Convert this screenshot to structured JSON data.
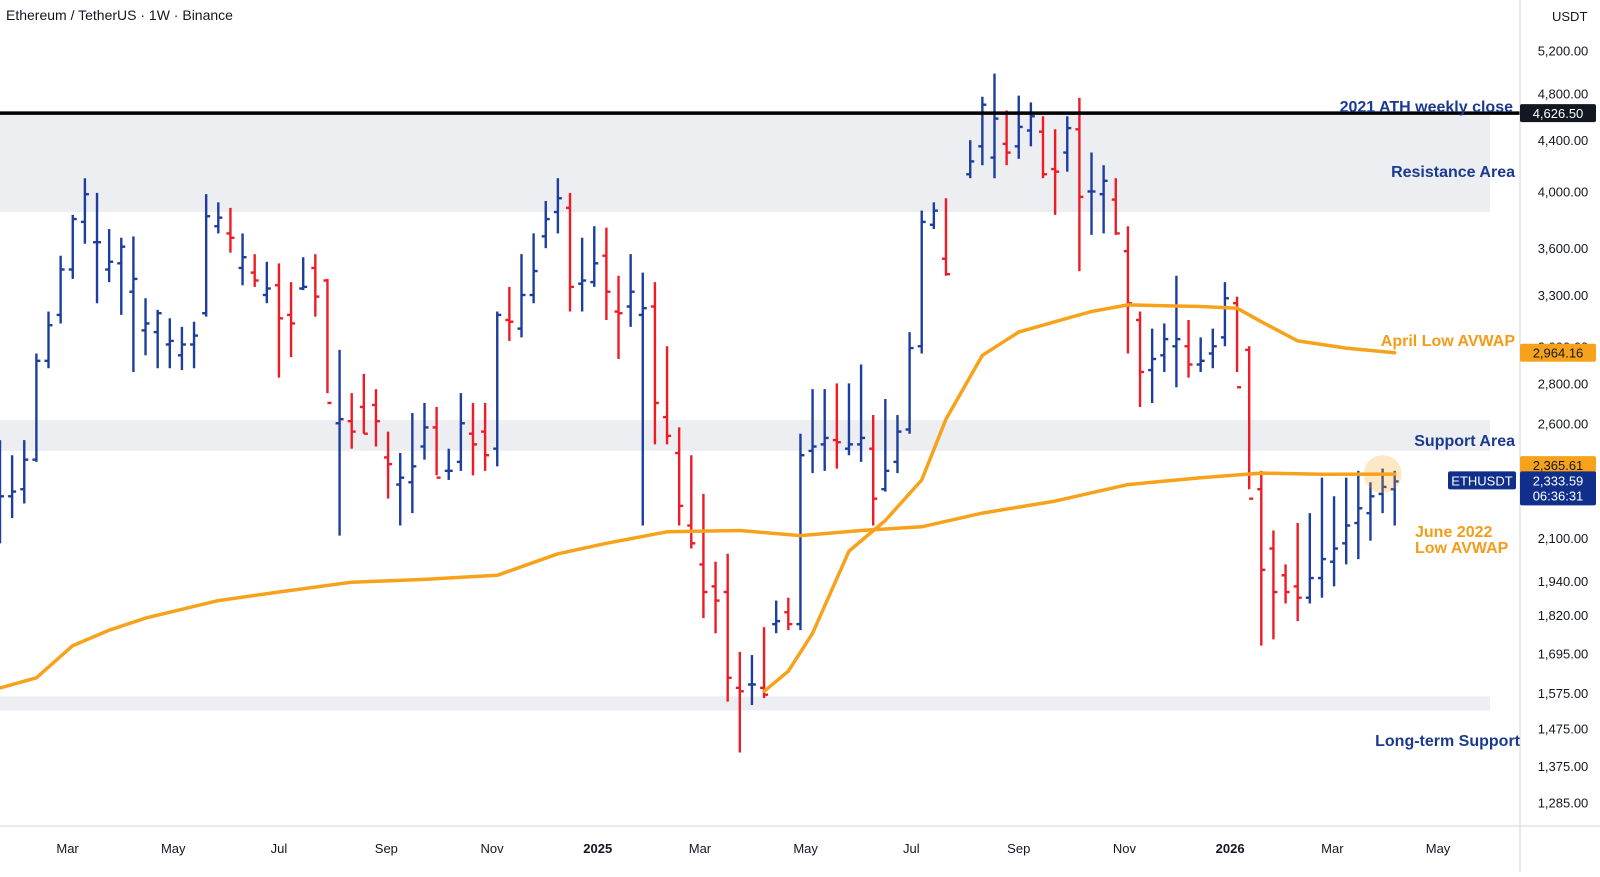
{
  "header": {
    "symbol_title": "Ethereum / TetherUS · 1W · Binance"
  },
  "price_axis": {
    "unit_label": "USDT",
    "ticks": [
      "5,200.00",
      "4,800.00",
      "4,400.00",
      "4,000.00",
      "3,600.00",
      "3,300.00",
      "3,000.00",
      "2,800.00",
      "2,600.00",
      "2,100.00",
      "1,940.00",
      "1,820.00",
      "1,695.00",
      "1,575.00",
      "1,475.00",
      "1,375.00",
      "1,285.00"
    ]
  },
  "time_axis": {
    "ticks": [
      {
        "label": "Mar",
        "date": "2024-03-01",
        "bold": false
      },
      {
        "label": "May",
        "date": "2024-05-01",
        "bold": false
      },
      {
        "label": "Jul",
        "date": "2024-07-01",
        "bold": false
      },
      {
        "label": "Sep",
        "date": "2024-09-01",
        "bold": false
      },
      {
        "label": "Nov",
        "date": "2024-11-01",
        "bold": false
      },
      {
        "label": "2025",
        "date": "2025-01-01",
        "bold": true
      },
      {
        "label": "Mar",
        "date": "2025-03-01",
        "bold": false
      },
      {
        "label": "May",
        "date": "2025-05-01",
        "bold": false
      },
      {
        "label": "Jul",
        "date": "2025-07-01",
        "bold": false
      },
      {
        "label": "Sep",
        "date": "2025-09-01",
        "bold": false
      },
      {
        "label": "Nov",
        "date": "2025-11-01",
        "bold": false
      },
      {
        "label": "2026",
        "date": "2026-01-01",
        "bold": true
      },
      {
        "label": "Mar",
        "date": "2026-03-01",
        "bold": false
      },
      {
        "label": "May",
        "date": "2026-05-01",
        "bold": false
      }
    ]
  },
  "price_labels": {
    "ath": {
      "text": "4,626.50",
      "value": 4626.5,
      "bg": "#131722",
      "fg": "#ffffff"
    },
    "april_avwap": {
      "text": "2,964.16",
      "value": 2964.16,
      "bg": "#f7a21b",
      "fg": "#131722"
    },
    "june_avwap": {
      "text": "2,365.61",
      "value": 2365.61,
      "bg": "#f7a21b",
      "fg": "#131722"
    },
    "last": {
      "symbol": "ETHUSDT",
      "price": "2,333.59",
      "countdown": "06:36:31",
      "value": 2333.59,
      "bg": "#0f2f8a",
      "fg": "#ffffff"
    }
  },
  "annotations": {
    "ath_weekly_close": "2021 ATH weekly close",
    "resistance_area": "Resistance Area",
    "april_low_avwap": "April Low AVWAP",
    "support_area": "Support Area",
    "june_avwap_line1": "June 2022",
    "june_avwap_line2": "Low AVWAP",
    "long_term_support": "Long-term Support"
  },
  "colors": {
    "up": "#1d3e9e",
    "down": "#ee1c25",
    "avwap": "#f7a21b",
    "zone": "#eceef1",
    "annotation_blue": "#1b3a8f",
    "annotation_orange": "#f59b1a",
    "ath_line": "#000000"
  },
  "chart_data": {
    "type": "ohlc",
    "title": "Ethereum / TetherUS · 1W · Binance",
    "price_scale": "log",
    "ylim": [
      1230,
      5400
    ],
    "xlim": [
      "2024-01-22",
      "2026-05-31"
    ],
    "zones": [
      {
        "name": "Resistance Area",
        "low": 3850,
        "high": 4626.5
      },
      {
        "name": "Support Area",
        "low": 2470,
        "high": 2615
      },
      {
        "name": "Long-term Support",
        "low": 1525,
        "high": 1565
      }
    ],
    "levels": [
      {
        "name": "2021 ATH weekly close",
        "value": 4626.5
      }
    ],
    "bars": [
      [
        "2024-01-22",
        2520,
        2080,
        2180,
        2270
      ],
      [
        "2024-01-29",
        2450,
        2180,
        2270,
        2290
      ],
      [
        "2024-02-05",
        2520,
        2240,
        2300,
        2430
      ],
      [
        "2024-02-12",
        2960,
        2420,
        2430,
        2920
      ],
      [
        "2024-02-19",
        3200,
        2880,
        2920,
        3120
      ],
      [
        "2024-02-26",
        3550,
        3130,
        3180,
        3460
      ],
      [
        "2024-03-04",
        3830,
        3400,
        3460,
        3800
      ],
      [
        "2024-03-11",
        4100,
        3630,
        3780,
        3980
      ],
      [
        "2024-03-18",
        3990,
        3250,
        3640,
        3640
      ],
      [
        "2024-03-25",
        3730,
        3380,
        3460,
        3510
      ],
      [
        "2024-04-01",
        3670,
        3180,
        3500,
        3610
      ],
      [
        "2024-04-08",
        3680,
        2860,
        3320,
        3400
      ],
      [
        "2024-04-15",
        3280,
        2950,
        3090,
        3130
      ],
      [
        "2024-04-22",
        3210,
        2880,
        3080,
        3190
      ],
      [
        "2024-04-29",
        3160,
        2880,
        3010,
        3030
      ],
      [
        "2024-05-06",
        3110,
        2870,
        2950,
        3010
      ],
      [
        "2024-05-13",
        3140,
        2880,
        3010,
        3060
      ],
      [
        "2024-05-20",
        3980,
        3170,
        3190,
        3820
      ],
      [
        "2024-05-27",
        3920,
        3700,
        3750,
        3810
      ],
      [
        "2024-06-03",
        3880,
        3570,
        3700,
        3670
      ],
      [
        "2024-06-10",
        3700,
        3360,
        3470,
        3540
      ],
      [
        "2024-06-17",
        3560,
        3350,
        3440,
        3390
      ],
      [
        "2024-06-24",
        3510,
        3250,
        3300,
        3340
      ],
      [
        "2024-07-01",
        3500,
        2830,
        3360,
        3160
      ],
      [
        "2024-07-08",
        3380,
        2940,
        3180,
        3130
      ],
      [
        "2024-07-15",
        3540,
        3330,
        3340,
        3350
      ],
      [
        "2024-07-22",
        3560,
        3170,
        3470,
        3290
      ],
      [
        "2024-07-29",
        3400,
        2750,
        3390,
        2700
      ],
      [
        "2024-08-05",
        2980,
        2110,
        2600,
        2620
      ],
      [
        "2024-08-12",
        2750,
        2480,
        2610,
        2560
      ],
      [
        "2024-08-19",
        2850,
        2550,
        2680,
        2550
      ],
      [
        "2024-08-26",
        2770,
        2490,
        2690,
        2610
      ],
      [
        "2024-09-02",
        2560,
        2260,
        2440,
        2410
      ],
      [
        "2024-09-09",
        2460,
        2150,
        2320,
        2350
      ],
      [
        "2024-09-16",
        2650,
        2200,
        2330,
        2400
      ],
      [
        "2024-09-23",
        2700,
        2430,
        2490,
        2580
      ],
      [
        "2024-09-30",
        2680,
        2360,
        2580,
        2350
      ],
      [
        "2024-10-07",
        2480,
        2340,
        2380,
        2380
      ],
      [
        "2024-10-14",
        2750,
        2380,
        2420,
        2600
      ],
      [
        "2024-10-21",
        2700,
        2360,
        2550,
        2500
      ],
      [
        "2024-10-28",
        2700,
        2380,
        2560,
        2450
      ],
      [
        "2024-11-04",
        3200,
        2400,
        2480,
        3180
      ],
      [
        "2024-11-11",
        3350,
        3030,
        3150,
        3140
      ],
      [
        "2024-11-18",
        3560,
        3050,
        3100,
        3300
      ],
      [
        "2024-11-25",
        3700,
        3250,
        3300,
        3450
      ],
      [
        "2024-12-02",
        3930,
        3600,
        3680,
        3800
      ],
      [
        "2024-12-09",
        4100,
        3700,
        3850,
        3950
      ],
      [
        "2024-12-16",
        3990,
        3200,
        3880,
        3350
      ],
      [
        "2024-12-23",
        3670,
        3200,
        3370,
        3390
      ],
      [
        "2024-12-30",
        3750,
        3350,
        3380,
        3500
      ],
      [
        "2025-01-06",
        3740,
        3150,
        3550,
        3320
      ],
      [
        "2025-01-13",
        3420,
        2930,
        3200,
        3190
      ],
      [
        "2025-01-20",
        3560,
        3110,
        3230,
        3320
      ],
      [
        "2025-01-27",
        3440,
        2150,
        3180,
        3220
      ],
      [
        "2025-02-03",
        3380,
        2500,
        3230,
        2700
      ],
      [
        "2025-02-10",
        3000,
        2500,
        2630,
        2540
      ],
      [
        "2025-02-17",
        2580,
        2150,
        2460,
        2230
      ],
      [
        "2025-02-24",
        2450,
        2060,
        2150,
        2080
      ],
      [
        "2025-03-03",
        2280,
        1810,
        2000,
        1900
      ],
      [
        "2025-03-10",
        2010,
        1760,
        1920,
        1870
      ],
      [
        "2025-03-17",
        2040,
        1550,
        1900,
        1620
      ],
      [
        "2025-03-24",
        1700,
        1410,
        1590,
        1580
      ],
      [
        "2025-03-31",
        1690,
        1540,
        1600,
        1600
      ],
      [
        "2025-04-07",
        1780,
        1560,
        1590,
        1570
      ],
      [
        "2025-04-14",
        1870,
        1760,
        1790,
        1800
      ],
      [
        "2025-04-21",
        1880,
        1770,
        1830,
        1790
      ],
      [
        "2025-04-28",
        2550,
        1770,
        1790,
        2450
      ],
      [
        "2025-05-05",
        2770,
        2370,
        2470,
        2490
      ],
      [
        "2025-05-12",
        2770,
        2380,
        2500,
        2530
      ],
      [
        "2025-05-19",
        2800,
        2390,
        2520,
        2510
      ],
      [
        "2025-05-26",
        2800,
        2450,
        2480,
        2500
      ],
      [
        "2025-06-02",
        2900,
        2420,
        2500,
        2530
      ],
      [
        "2025-06-09",
        2640,
        2150,
        2480,
        2260
      ],
      [
        "2025-06-16",
        2720,
        2290,
        2300,
        2380
      ],
      [
        "2025-06-23",
        2640,
        2370,
        2420,
        2560
      ],
      [
        "2025-06-30",
        3080,
        2550,
        2570,
        2990
      ],
      [
        "2025-07-07",
        3860,
        2960,
        3000,
        3780
      ],
      [
        "2025-07-14",
        3920,
        3730,
        3760,
        3860
      ],
      [
        "2025-07-21",
        3950,
        3420,
        3530,
        3430
      ],
      [
        "2025-08-04",
        4400,
        4100,
        4130,
        4230
      ],
      [
        "2025-08-11",
        4770,
        4200,
        4350,
        4700
      ],
      [
        "2025-08-18",
        4980,
        4100,
        4260,
        4580
      ],
      [
        "2025-08-25",
        4650,
        4200,
        4370,
        4300
      ],
      [
        "2025-09-01",
        4780,
        4250,
        4350,
        4510
      ],
      [
        "2025-09-08",
        4720,
        4350,
        4480,
        4600
      ],
      [
        "2025-09-15",
        4600,
        4100,
        4470,
        4130
      ],
      [
        "2025-09-22",
        4490,
        3830,
        4170,
        4150
      ],
      [
        "2025-09-29",
        4600,
        4150,
        4300,
        4500
      ],
      [
        "2025-10-06",
        4760,
        3450,
        4490,
        3960
      ],
      [
        "2025-10-13",
        4300,
        3690,
        4000,
        4000
      ],
      [
        "2025-10-20",
        4200,
        3700,
        3980,
        4080
      ],
      [
        "2025-10-27",
        4100,
        3690,
        3940,
        3700
      ],
      [
        "2025-11-03",
        3750,
        2960,
        3580,
        3250
      ],
      [
        "2025-11-10",
        3200,
        2680,
        3150,
        2860
      ],
      [
        "2025-11-17",
        3100,
        2700,
        2870,
        2930
      ],
      [
        "2025-11-24",
        3130,
        2860,
        2950,
        3040
      ],
      [
        "2025-12-01",
        3420,
        2780,
        3000,
        3040
      ],
      [
        "2025-12-08",
        3150,
        2830,
        3000,
        2900
      ],
      [
        "2025-12-15",
        3050,
        2860,
        2900,
        2920
      ],
      [
        "2025-12-22",
        3100,
        2880,
        2960,
        3000
      ],
      [
        "2025-12-29",
        3380,
        3000,
        3050,
        3280
      ],
      [
        "2026-01-05",
        3290,
        2860,
        3250,
        2780
      ],
      [
        "2026-01-12",
        3000,
        2300,
        2980,
        2260
      ],
      [
        "2026-01-19",
        2380,
        1720,
        2300,
        1980
      ],
      [
        "2026-01-26",
        2130,
        1740,
        2060,
        1900
      ],
      [
        "2026-02-02",
        2000,
        1860,
        1960,
        1900
      ],
      [
        "2026-02-09",
        2160,
        1800,
        1920,
        1880
      ],
      [
        "2026-02-16",
        2200,
        1860,
        1880,
        1950
      ],
      [
        "2026-02-23",
        2350,
        1880,
        1950,
        2020
      ],
      [
        "2026-03-02",
        2270,
        1920,
        2010,
        2060
      ],
      [
        "2026-03-09",
        2350,
        2000,
        2080,
        2150
      ],
      [
        "2026-03-16",
        2380,
        2020,
        2160,
        2220
      ],
      [
        "2026-03-23",
        2330,
        2090,
        2200,
        2270
      ],
      [
        "2026-03-30",
        2390,
        2200,
        2280,
        2310
      ],
      [
        "2026-04-06",
        2380,
        2150,
        2300,
        2333.59
      ]
    ],
    "series": [
      {
        "name": "April Low AVWAP",
        "points": [
          [
            "2025-04-07",
            1580
          ],
          [
            "2025-04-21",
            1640
          ],
          [
            "2025-05-05",
            1760
          ],
          [
            "2025-05-26",
            2050
          ],
          [
            "2025-06-16",
            2170
          ],
          [
            "2025-07-07",
            2340
          ],
          [
            "2025-07-21",
            2620
          ],
          [
            "2025-08-11",
            2950
          ],
          [
            "2025-09-01",
            3080
          ],
          [
            "2025-09-22",
            3140
          ],
          [
            "2025-10-13",
            3200
          ],
          [
            "2025-11-03",
            3240
          ],
          [
            "2025-11-24",
            3235
          ],
          [
            "2025-12-15",
            3230
          ],
          [
            "2026-01-05",
            3220
          ],
          [
            "2026-01-19",
            3140
          ],
          [
            "2026-02-09",
            3030
          ],
          [
            "2026-03-09",
            2990
          ],
          [
            "2026-04-06",
            2964.16
          ]
        ]
      },
      {
        "name": "June 2022 Low AVWAP",
        "points": [
          [
            "2024-01-22",
            1590
          ],
          [
            "2024-02-12",
            1620
          ],
          [
            "2024-03-04",
            1720
          ],
          [
            "2024-03-25",
            1770
          ],
          [
            "2024-04-15",
            1810
          ],
          [
            "2024-05-06",
            1840
          ],
          [
            "2024-05-27",
            1870
          ],
          [
            "2024-07-01",
            1900
          ],
          [
            "2024-08-12",
            1935
          ],
          [
            "2024-09-23",
            1945
          ],
          [
            "2024-11-04",
            1960
          ],
          [
            "2024-12-09",
            2040
          ],
          [
            "2025-01-06",
            2080
          ],
          [
            "2025-02-10",
            2125
          ],
          [
            "2025-03-24",
            2130
          ],
          [
            "2025-04-28",
            2110
          ],
          [
            "2025-06-02",
            2130
          ],
          [
            "2025-07-07",
            2145
          ],
          [
            "2025-08-11",
            2200
          ],
          [
            "2025-09-22",
            2250
          ],
          [
            "2025-11-03",
            2320
          ],
          [
            "2025-12-15",
            2350
          ],
          [
            "2026-01-19",
            2370
          ],
          [
            "2026-02-23",
            2365
          ],
          [
            "2026-04-06",
            2365.61
          ]
        ]
      }
    ]
  }
}
